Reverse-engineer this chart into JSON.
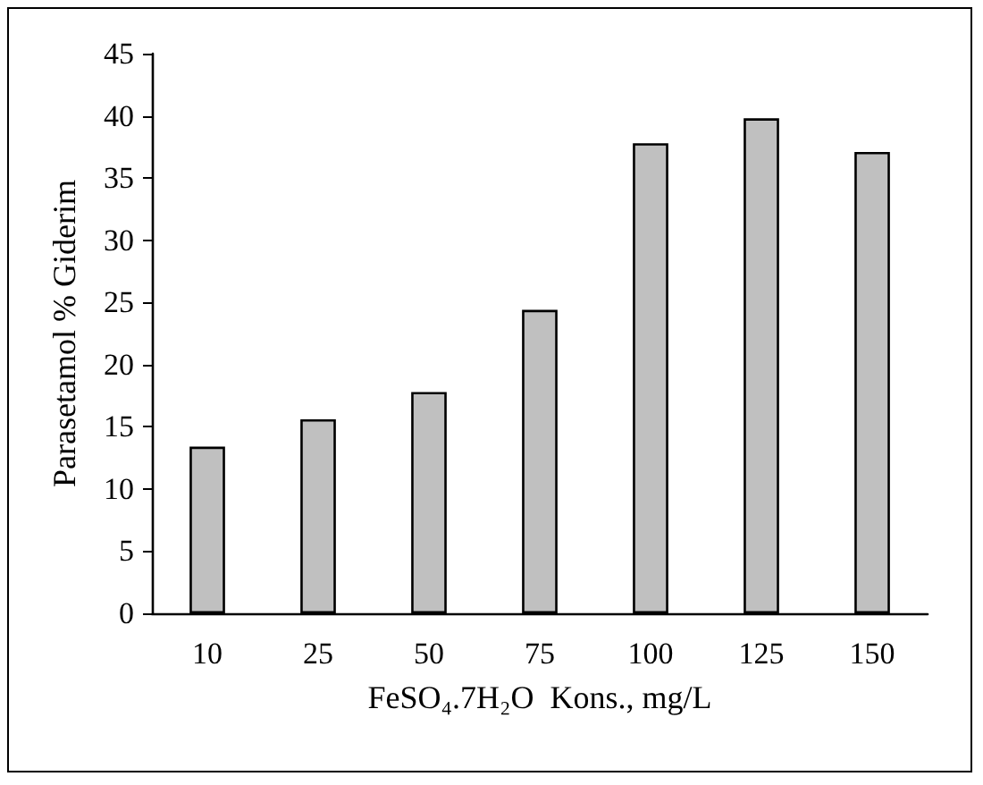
{
  "chart_data": {
    "type": "bar",
    "xlabel": "FeSO₄.7H₂O  Kons., mg/L",
    "ylabel": "Parasetamol % Giderim",
    "categories": [
      "10",
      "25",
      "50",
      "75",
      "100",
      "125",
      "150"
    ],
    "values": [
      13.4,
      15.6,
      17.8,
      24.4,
      37.8,
      39.8,
      37.1
    ],
    "color": "#c0c0c0",
    "ylim": [
      0,
      45
    ],
    "yticks": [
      0,
      5,
      10,
      15,
      20,
      25,
      30,
      35,
      40,
      45
    ],
    "grid": false
  }
}
